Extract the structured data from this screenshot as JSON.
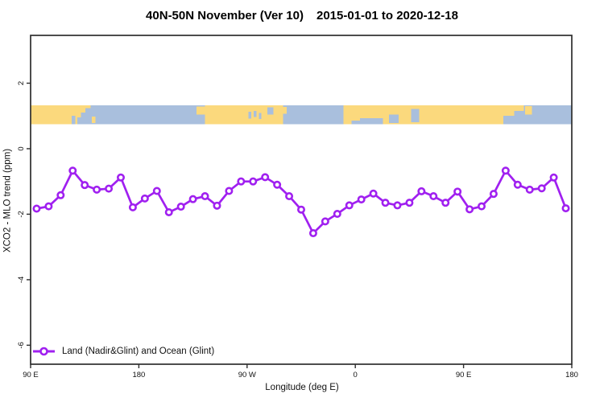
{
  "header": {
    "title_main": "40N-50N November (Ver 10)",
    "title_dates": "2015-01-01 to 2020-12-18"
  },
  "legend": {
    "label": "Land (Nadir&Glint) and Ocean (Glint)"
  },
  "chart_data": {
    "type": "line",
    "title": "40N-50N November (Ver 10) 2015-01-01 to 2020-12-18",
    "xlabel": "Longitude (deg E)",
    "ylabel": "XCO2 - MLO trend (ppm)",
    "xlim": [
      90,
      540
    ],
    "ylim": [
      -6.58,
      3.46
    ],
    "grid": false,
    "legend_position": "bottom-left",
    "x_ticks": [
      {
        "value": 90,
        "label": "90 E"
      },
      {
        "value": 180,
        "label": "180"
      },
      {
        "value": 270,
        "label": "90 W"
      },
      {
        "value": 360,
        "label": "0"
      },
      {
        "value": 450,
        "label": "90 E"
      },
      {
        "value": 540,
        "label": "180"
      }
    ],
    "y_ticks": [
      {
        "value": 2,
        "label": "2"
      },
      {
        "value": 0,
        "label": "0"
      },
      {
        "value": -2,
        "label": "-2"
      },
      {
        "value": -4,
        "label": "-4"
      },
      {
        "value": -6,
        "label": "-6"
      }
    ],
    "series": [
      {
        "name": "Land (Nadir&Glint) and Ocean (Glint)",
        "color": "#A020F0",
        "marker": "open-circle",
        "x": [
          95,
          105,
          115,
          125,
          135,
          145,
          155,
          165,
          175,
          185,
          195,
          205,
          215,
          225,
          235,
          245,
          255,
          265,
          275,
          285,
          295,
          305,
          315,
          325,
          335,
          345,
          355,
          365,
          375,
          385,
          395,
          405,
          415,
          425,
          435,
          445,
          455,
          465,
          475,
          485,
          495,
          505,
          515,
          525,
          535
        ],
        "values": [
          -1.83,
          -1.76,
          -1.42,
          -0.67,
          -1.11,
          -1.25,
          -1.22,
          -0.88,
          -1.79,
          -1.52,
          -1.29,
          -1.94,
          -1.77,
          -1.54,
          -1.45,
          -1.74,
          -1.29,
          -1.0,
          -1.0,
          -0.87,
          -1.1,
          -1.45,
          -1.86,
          -2.58,
          -2.22,
          -1.99,
          -1.73,
          -1.55,
          -1.37,
          -1.65,
          -1.73,
          -1.65,
          -1.3,
          -1.45,
          -1.65,
          -1.31,
          -1.85,
          -1.76,
          -1.38,
          -0.67,
          -1.1,
          -1.25,
          -1.21,
          -0.88,
          -1.82
        ]
      }
    ],
    "map_strip": {
      "description": "land-ocean strip for 40N-50N",
      "ppm_top": 1.33,
      "ppm_bottom": 0.75,
      "land_color": "#FBD97D",
      "ocean_color": "#A9BFDD",
      "segments": [
        {
          "type": "land",
          "from": 90,
          "to": 140
        },
        {
          "type": "ocean",
          "from": 140,
          "to": 235
        },
        {
          "type": "land",
          "from": 235,
          "to": 300
        },
        {
          "type": "ocean",
          "from": 300,
          "to": 350
        },
        {
          "type": "land",
          "from": 350,
          "to": 500
        },
        {
          "type": "ocean",
          "from": 500,
          "to": 540
        }
      ],
      "ocean_patches": [
        {
          "from": 124,
          "to": 127,
          "top": 0.55,
          "bottom": 1.0
        },
        {
          "from": 129,
          "to": 132,
          "top": 0.65,
          "bottom": 1.0
        },
        {
          "from": 132,
          "to": 135.5,
          "top": 0.4,
          "bottom": 1.0
        },
        {
          "from": 135.5,
          "to": 140,
          "top": 0.15,
          "bottom": 1.0
        },
        {
          "from": 271,
          "to": 273.5,
          "top": 0.35,
          "bottom": 0.7
        },
        {
          "from": 275.5,
          "to": 278,
          "top": 0.3,
          "bottom": 0.62
        },
        {
          "from": 280,
          "to": 282,
          "top": 0.42,
          "bottom": 0.72
        },
        {
          "from": 287,
          "to": 292,
          "top": 0.12,
          "bottom": 0.5
        },
        {
          "from": 357,
          "to": 364,
          "top": 0.82,
          "bottom": 1.0
        },
        {
          "from": 364,
          "to": 383,
          "top": 0.68,
          "bottom": 1.0
        },
        {
          "from": 388,
          "to": 396,
          "top": 0.5,
          "bottom": 0.95
        },
        {
          "from": 406.5,
          "to": 413,
          "top": 0.2,
          "bottom": 0.9
        },
        {
          "from": 483,
          "to": 492,
          "top": 0.55,
          "bottom": 1.0
        },
        {
          "from": 492,
          "to": 500,
          "top": 0.3,
          "bottom": 1.0
        }
      ],
      "land_patches": [
        {
          "from": 141,
          "to": 144,
          "top": 0.6,
          "bottom": 0.95
        },
        {
          "from": 228,
          "to": 235,
          "top": 0.08,
          "bottom": 0.5
        },
        {
          "from": 297,
          "to": 303,
          "top": 0.1,
          "bottom": 0.45
        },
        {
          "from": 501,
          "to": 507,
          "top": 0.05,
          "bottom": 0.5
        }
      ]
    }
  }
}
